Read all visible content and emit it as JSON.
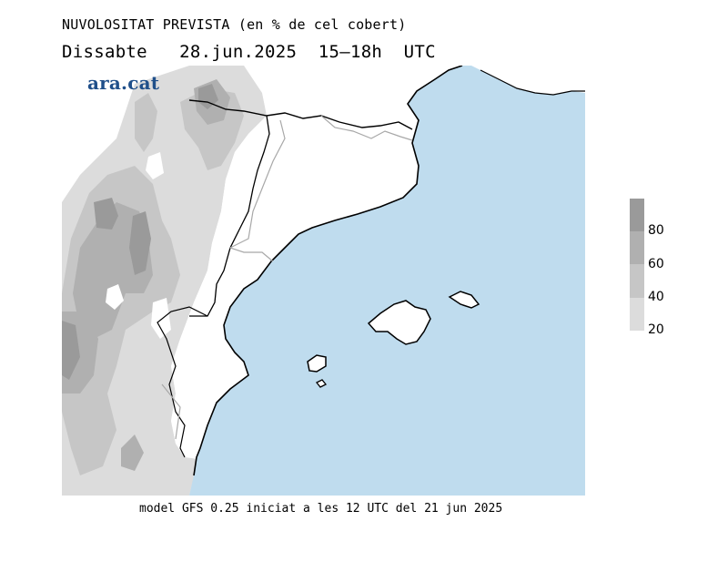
{
  "header": {
    "title": "NUVOLOSITAT PREVISTA (en % de cel cobert)",
    "subtitle": "Dissabte   28.jun.2025  15–18h  UTC"
  },
  "brand": {
    "logo_text": "ara.cat"
  },
  "footer": {
    "note": "model GFS 0.25 iniciat a les 12 UTC del 21 jun 2025"
  },
  "legend": {
    "labels": [
      "80",
      "60",
      "40",
      "20"
    ],
    "bands": [
      {
        "from": 80,
        "to": 100,
        "color": "#9a9a9a"
      },
      {
        "from": 60,
        "to": 80,
        "color": "#b0b0b0"
      },
      {
        "from": 40,
        "to": 60,
        "color": "#c6c6c6"
      },
      {
        "from": 20,
        "to": 40,
        "color": "#dcdcdc"
      }
    ]
  },
  "colors": {
    "sea": "#bfdcee",
    "land_clear": "#ffffff",
    "coastline": "#000000",
    "internal_border": "#a8a8a8"
  },
  "map": {
    "region": "Catalonia, Valencia and Balearic Islands",
    "variable": "cloud cover %"
  }
}
